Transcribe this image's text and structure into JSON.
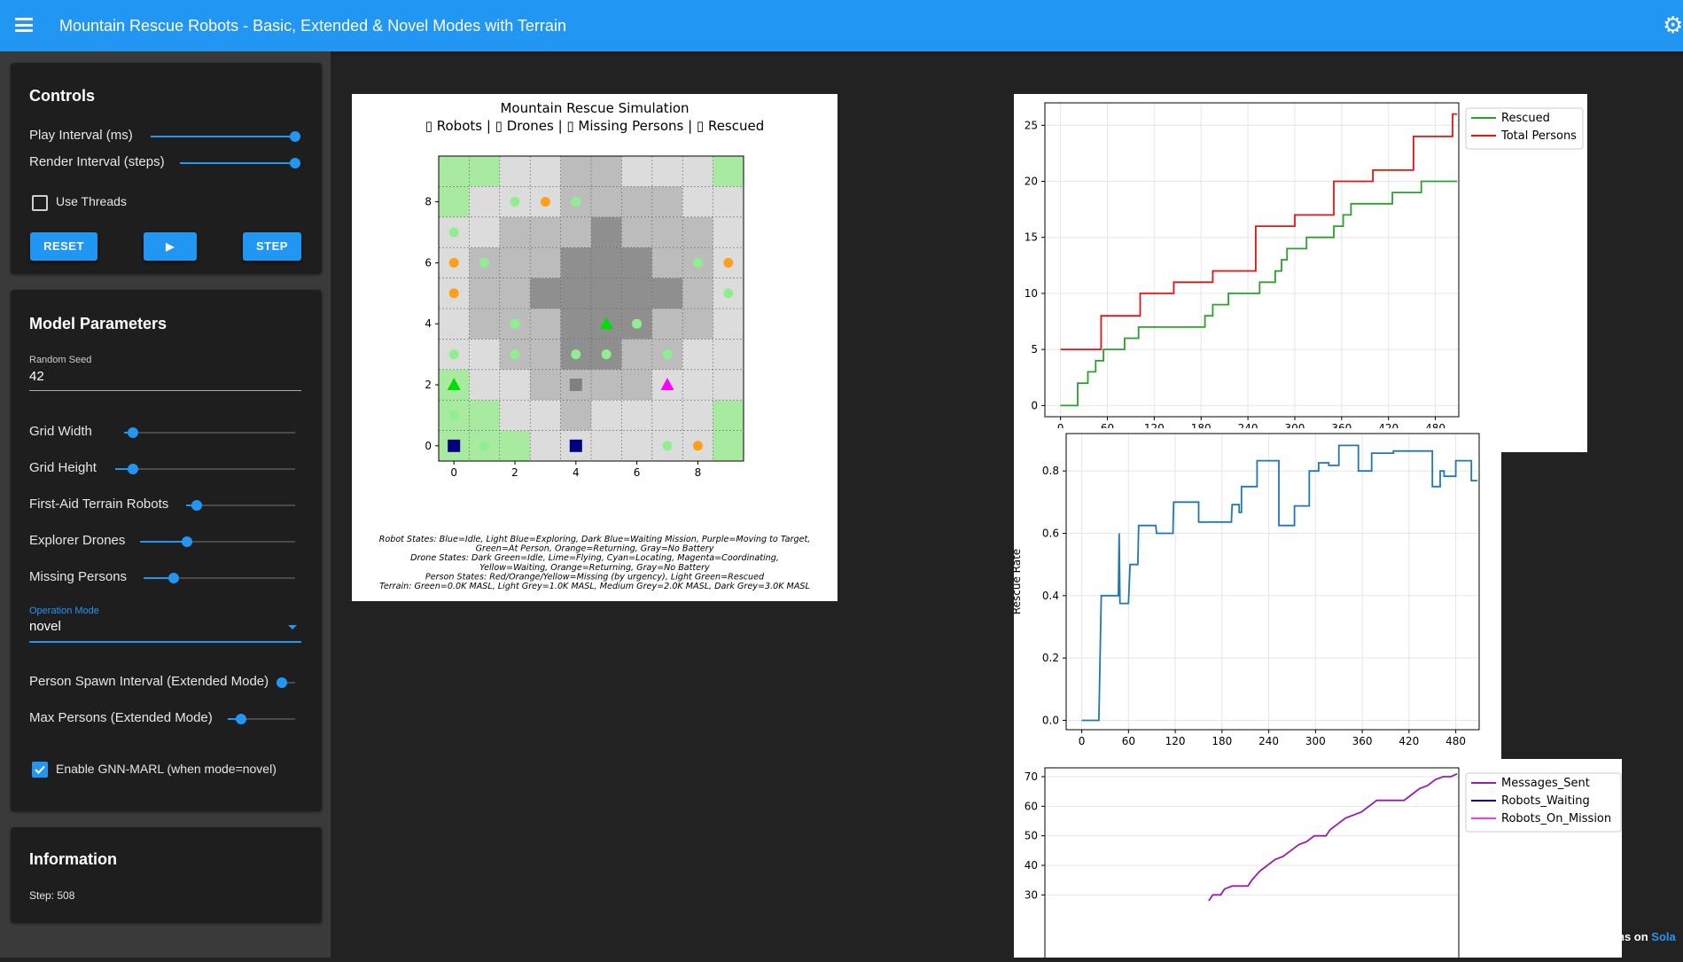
{
  "header": {
    "title": "Mountain Rescue Robots - Basic, Extended & Novel Modes with Terrain",
    "menu_icon": "hamburger-icon",
    "settings_icon": "gear-icon"
  },
  "controls": {
    "title": "Controls",
    "play_interval_label": "Play Interval (ms)",
    "play_interval_value": 1.0,
    "render_interval_label": "Render Interval (steps)",
    "render_interval_value": 1.0,
    "use_threads_label": "Use Threads",
    "use_threads_checked": false,
    "reset_label": "RESET",
    "play_label": "▶",
    "step_label": "STEP"
  },
  "params": {
    "title": "Model Parameters",
    "seed_label": "Random Seed",
    "seed_value": "42",
    "grid_width_label": "Grid Width",
    "grid_width_value": 0.05,
    "grid_height_label": "Grid Height",
    "grid_height_value": 0.1,
    "robots_label": "First-Aid Terrain Robots",
    "robots_value": 0.1,
    "drones_label": "Explorer Drones",
    "drones_value": 0.3,
    "persons_label": "Missing Persons",
    "persons_value": 0.2,
    "mode_label": "Operation Mode",
    "mode_value": "novel",
    "spawn_label": "Person Spawn Interval (Extended Mode)",
    "spawn_value": 0.0,
    "max_persons_label": "Max Persons (Extended Mode)",
    "max_persons_value": 0.2,
    "gnn_label": "Enable GNN-MARL (when mode=novel)",
    "gnn_checked": true
  },
  "info": {
    "title": "Information",
    "step": "Step: 508"
  },
  "footer": {
    "text": "ns on ",
    "link": "Sola"
  },
  "simulation": {
    "title": "Mountain Rescue Simulation",
    "subtitle": "▯ Robots | ▯ Drones | ▯ Missing Persons | ▯ Rescued",
    "terrain": [
      [
        1,
        1,
        2,
        2,
        3,
        3,
        2,
        2,
        2,
        1
      ],
      [
        1,
        2,
        2,
        2,
        3,
        3,
        3,
        3,
        2,
        2
      ],
      [
        2,
        2,
        3,
        3,
        3,
        4,
        3,
        3,
        3,
        2
      ],
      [
        2,
        3,
        3,
        3,
        4,
        4,
        4,
        3,
        3,
        2
      ],
      [
        2,
        3,
        3,
        4,
        4,
        4,
        4,
        4,
        3,
        2
      ],
      [
        2,
        3,
        3,
        3,
        4,
        4,
        4,
        3,
        3,
        2
      ],
      [
        2,
        2,
        3,
        3,
        4,
        4,
        3,
        3,
        2,
        2
      ],
      [
        1,
        2,
        2,
        3,
        3,
        3,
        3,
        2,
        2,
        2
      ],
      [
        1,
        1,
        2,
        2,
        3,
        2,
        2,
        2,
        2,
        1
      ],
      [
        1,
        1,
        1,
        2,
        2,
        2,
        2,
        2,
        2,
        1
      ]
    ],
    "terrain_colors": [
      "",
      "#a8eba0",
      "#dcdcdc",
      "#bcbcbc",
      "#8f8f8f"
    ],
    "markers": [
      {
        "x": 2,
        "y": 8,
        "kind": "circle",
        "color": "#90ee90"
      },
      {
        "x": 3,
        "y": 8,
        "kind": "circle",
        "color": "#ff9f1a"
      },
      {
        "x": 4,
        "y": 8,
        "kind": "circle",
        "color": "#90ee90"
      },
      {
        "x": 0,
        "y": 7,
        "kind": "circle",
        "color": "#90ee90"
      },
      {
        "x": 0,
        "y": 6,
        "kind": "circle",
        "color": "#ff9f1a"
      },
      {
        "x": 1,
        "y": 6,
        "kind": "circle",
        "color": "#90ee90"
      },
      {
        "x": 8,
        "y": 6,
        "kind": "circle",
        "color": "#90ee90"
      },
      {
        "x": 9,
        "y": 6,
        "kind": "circle",
        "color": "#ff9f1a"
      },
      {
        "x": 0,
        "y": 5,
        "kind": "circle",
        "color": "#ff9f1a"
      },
      {
        "x": 9,
        "y": 5,
        "kind": "circle",
        "color": "#90ee90"
      },
      {
        "x": 2,
        "y": 4,
        "kind": "circle",
        "color": "#90ee90"
      },
      {
        "x": 5,
        "y": 4,
        "kind": "triangle",
        "color": "#00dd00"
      },
      {
        "x": 6,
        "y": 4,
        "kind": "circle",
        "color": "#90ee90"
      },
      {
        "x": 0,
        "y": 3,
        "kind": "circle",
        "color": "#90ee90"
      },
      {
        "x": 2,
        "y": 3,
        "kind": "circle",
        "color": "#90ee90"
      },
      {
        "x": 4,
        "y": 3,
        "kind": "circle",
        "color": "#90ee90"
      },
      {
        "x": 5,
        "y": 3,
        "kind": "circle",
        "color": "#90ee90"
      },
      {
        "x": 7,
        "y": 3,
        "kind": "circle",
        "color": "#90ee90"
      },
      {
        "x": 0,
        "y": 2,
        "kind": "triangle",
        "color": "#00dd00"
      },
      {
        "x": 4,
        "y": 2,
        "kind": "square",
        "color": "#808080"
      },
      {
        "x": 7,
        "y": 2,
        "kind": "triangle",
        "color": "#ff00ff"
      },
      {
        "x": 0,
        "y": 1,
        "kind": "circle",
        "color": "#90ee90"
      },
      {
        "x": 0,
        "y": 0,
        "kind": "square",
        "color": "#000080"
      },
      {
        "x": 1,
        "y": 0,
        "kind": "circle",
        "color": "#90ee90"
      },
      {
        "x": 4,
        "y": 0,
        "kind": "square",
        "color": "#000080"
      },
      {
        "x": 7,
        "y": 0,
        "kind": "circle",
        "color": "#90ee90"
      },
      {
        "x": 8,
        "y": 0,
        "kind": "circle",
        "color": "#ff9f1a"
      }
    ],
    "ticks": [
      "0",
      "2",
      "4",
      "6",
      "8"
    ],
    "legend_lines": [
      "Robot States: Blue=Idle, Light Blue=Exploring, Dark Blue=Waiting Mission, Purple=Moving to Target,",
      "Green=At Person, Orange=Returning, Gray=No Battery",
      "Drone States: Dark Green=Idle, Lime=Flying, Cyan=Locating, Magenta=Coordinating,",
      "Yellow=Waiting, Orange=Returning, Gray=No Battery",
      "Person States: Red/Orange/Yellow=Missing (by urgency), Light Green=Rescued",
      "Terrain: Green=0.0K MASL, Light Grey=1.0K MASL, Medium Grey=2.0K MASL, Dark Grey=3.0K MASL"
    ]
  },
  "chart_data": [
    {
      "type": "line",
      "xlim": [
        -20,
        510
      ],
      "ylim": [
        -1,
        27
      ],
      "xticks": [
        "0",
        "60",
        "120",
        "180",
        "240",
        "300",
        "360",
        "420",
        "480"
      ],
      "yticks": [
        "0",
        "5",
        "10",
        "15",
        "20",
        "25"
      ],
      "grid": true,
      "legend": "top-right (outside)",
      "series": [
        {
          "name": "Rescued",
          "color": "#2ca02c",
          "points": [
            [
              0,
              0
            ],
            [
              22,
              0
            ],
            [
              22,
              2
            ],
            [
              35,
              2
            ],
            [
              35,
              3
            ],
            [
              45,
              3
            ],
            [
              45,
              4
            ],
            [
              55,
              4
            ],
            [
              55,
              5
            ],
            [
              82,
              5
            ],
            [
              82,
              6
            ],
            [
              100,
              6
            ],
            [
              100,
              7
            ],
            [
              185,
              7
            ],
            [
              185,
              8
            ],
            [
              195,
              8
            ],
            [
              195,
              9
            ],
            [
              215,
              9
            ],
            [
              215,
              10
            ],
            [
              255,
              10
            ],
            [
              255,
              11
            ],
            [
              275,
              11
            ],
            [
              275,
              12
            ],
            [
              283,
              12
            ],
            [
              283,
              13
            ],
            [
              290,
              13
            ],
            [
              290,
              14
            ],
            [
              315,
              14
            ],
            [
              315,
              15
            ],
            [
              350,
              15
            ],
            [
              350,
              16
            ],
            [
              362,
              16
            ],
            [
              362,
              17
            ],
            [
              372,
              17
            ],
            [
              372,
              18
            ],
            [
              425,
              18
            ],
            [
              425,
              19
            ],
            [
              462,
              19
            ],
            [
              462,
              20
            ],
            [
              508,
              20
            ]
          ]
        },
        {
          "name": "Total Persons",
          "color": "#ee1111",
          "points": [
            [
              0,
              5
            ],
            [
              52,
              5
            ],
            [
              52,
              8
            ],
            [
              102,
              8
            ],
            [
              102,
              10
            ],
            [
              145,
              10
            ],
            [
              145,
              11
            ],
            [
              195,
              11
            ],
            [
              195,
              12
            ],
            [
              250,
              12
            ],
            [
              250,
              16
            ],
            [
              300,
              16
            ],
            [
              300,
              17
            ],
            [
              350,
              17
            ],
            [
              350,
              20
            ],
            [
              400,
              20
            ],
            [
              400,
              21
            ],
            [
              452,
              21
            ],
            [
              452,
              24
            ],
            [
              502,
              24
            ],
            [
              502,
              26
            ],
            [
              508,
              26
            ]
          ]
        }
      ]
    },
    {
      "type": "line",
      "xlim": [
        -20,
        510
      ],
      "ylim": [
        -0.03,
        0.92
      ],
      "ylabel": "Rescue Rate",
      "xticks": [
        "0",
        "60",
        "120",
        "180",
        "240",
        "300",
        "360",
        "420",
        "480"
      ],
      "yticks": [
        "0.0",
        "0.2",
        "0.4",
        "0.6",
        "0.8"
      ],
      "grid": true,
      "series": [
        {
          "name": "",
          "color": "#1f77b4",
          "points": [
            [
              0,
              0
            ],
            [
              22,
              0
            ],
            [
              25,
              0.4
            ],
            [
              47,
              0.4
            ],
            [
              48,
              0.6
            ],
            [
              49,
              0.375
            ],
            [
              60,
              0.375
            ],
            [
              62,
              0.5
            ],
            [
              72,
              0.5
            ],
            [
              73,
              0.625
            ],
            [
              95,
              0.625
            ],
            [
              96,
              0.6
            ],
            [
              117,
              0.6
            ],
            [
              118,
              0.7
            ],
            [
              150,
              0.7
            ],
            [
              150,
              0.636
            ],
            [
              192,
              0.636
            ],
            [
              193,
              0.692
            ],
            [
              202,
              0.692
            ],
            [
              202,
              0.667
            ],
            [
              205,
              0.667
            ],
            [
              205,
              0.75
            ],
            [
              225,
              0.75
            ],
            [
              225,
              0.833
            ],
            [
              253,
              0.833
            ],
            [
              253,
              0.625
            ],
            [
              273,
              0.625
            ],
            [
              273,
              0.688
            ],
            [
              292,
              0.688
            ],
            [
              292,
              0.8
            ],
            [
              304,
              0.8
            ],
            [
              304,
              0.826
            ],
            [
              317,
              0.826
            ],
            [
              317,
              0.818
            ],
            [
              330,
              0.818
            ],
            [
              330,
              0.882
            ],
            [
              355,
              0.882
            ],
            [
              355,
              0.8
            ],
            [
              372,
              0.8
            ],
            [
              372,
              0.857
            ],
            [
              400,
              0.857
            ],
            [
              400,
              0.864
            ],
            [
              450,
              0.864
            ],
            [
              450,
              0.75
            ],
            [
              460,
              0.75
            ],
            [
              460,
              0.8
            ],
            [
              465,
              0.8
            ],
            [
              465,
              0.783
            ],
            [
              480,
              0.783
            ],
            [
              480,
              0.833
            ],
            [
              500,
              0.833
            ],
            [
              500,
              0.769
            ],
            [
              508,
              0.769
            ]
          ]
        }
      ]
    },
    {
      "type": "line",
      "xlim": [
        -20,
        510
      ],
      "ylim": [
        -2,
        73
      ],
      "yticks": [
        "30",
        "40",
        "50",
        "60",
        "70"
      ],
      "grid": true,
      "legend": "top-right (outside)",
      "series": [
        {
          "name": "Messages_Sent",
          "color": "#9b1ab0",
          "points": [
            [
              190,
              28
            ],
            [
              195,
              30
            ],
            [
              205,
              30
            ],
            [
              210,
              32
            ],
            [
              220,
              33
            ],
            [
              240,
              33
            ],
            [
              245,
              35
            ],
            [
              255,
              38
            ],
            [
              265,
              40
            ],
            [
              275,
              42
            ],
            [
              285,
              43
            ],
            [
              295,
              45
            ],
            [
              305,
              47
            ],
            [
              315,
              48
            ],
            [
              325,
              50
            ],
            [
              340,
              50
            ],
            [
              345,
              52
            ],
            [
              355,
              54
            ],
            [
              365,
              56
            ],
            [
              375,
              57
            ],
            [
              385,
              58
            ],
            [
              395,
              60
            ],
            [
              405,
              62
            ],
            [
              440,
              62
            ],
            [
              450,
              64
            ],
            [
              460,
              66
            ],
            [
              470,
              67
            ],
            [
              480,
              69
            ],
            [
              490,
              70
            ],
            [
              500,
              70
            ],
            [
              508,
              71
            ]
          ]
        },
        {
          "name": "Robots_Waiting",
          "color": "#00008b",
          "points": []
        },
        {
          "name": "Robots_On_Mission",
          "color": "#ff33ff",
          "points": []
        }
      ]
    }
  ]
}
